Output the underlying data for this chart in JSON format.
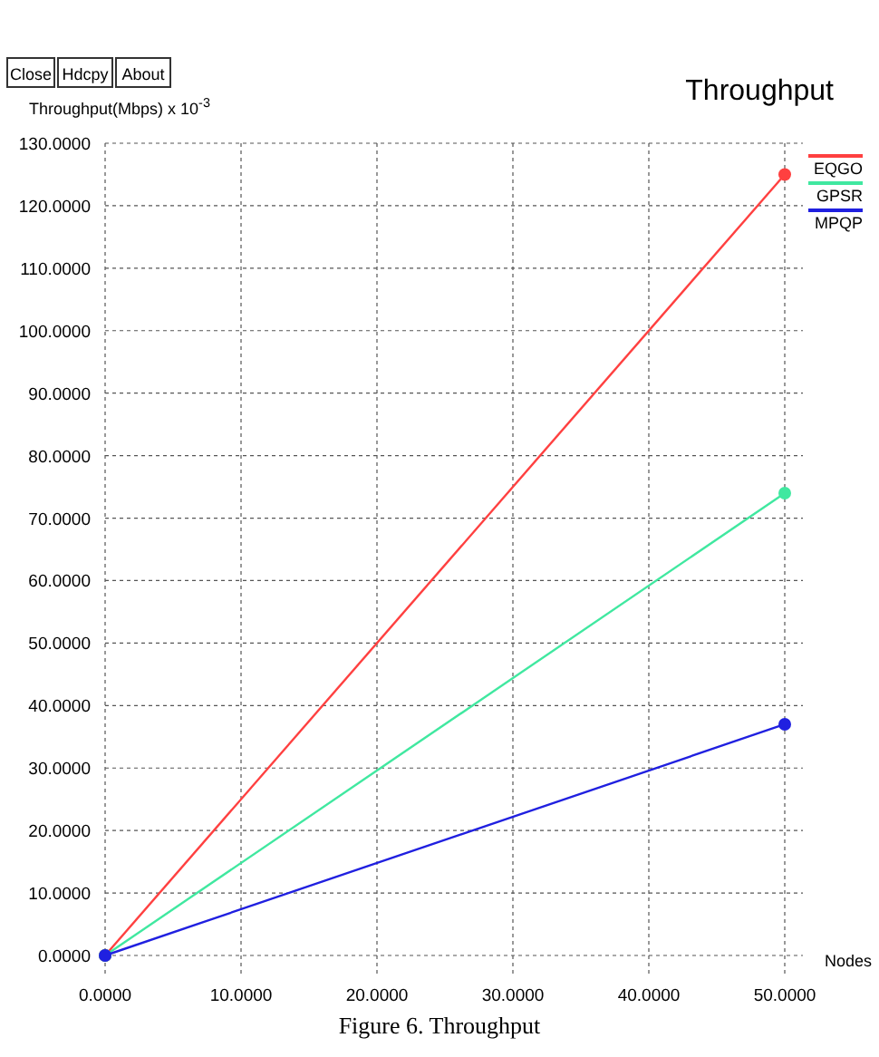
{
  "chart_data": {
    "type": "line",
    "title": "Throughput",
    "xlabel": "Nodes",
    "ylabel": "Throughput(Mbps) x 10$^{-3}$",
    "annotations": [
      "Close",
      "Hdcpy",
      "About",
      "Figure 6. Throughput"
    ],
    "x": [
      0,
      50
    ],
    "series": [
      {
        "name": "EQGO",
        "color": "#ff4040",
        "values": [
          0,
          125
        ]
      },
      {
        "name": "GPSR",
        "color": "#40e8a0",
        "values": [
          0,
          74
        ]
      },
      {
        "name": "MPQP",
        "color": "#2020e0",
        "values": [
          0,
          37
        ]
      }
    ],
    "xlim": [
      0,
      50
    ],
    "ylim": [
      0,
      130
    ],
    "xticks": [
      {
        "value": 0,
        "label": "0.0000"
      },
      {
        "value": 10,
        "label": "10.0000"
      },
      {
        "value": 20,
        "label": "20.0000"
      },
      {
        "value": 30,
        "label": "30.0000"
      },
      {
        "value": 40,
        "label": "40.0000"
      },
      {
        "value": 50,
        "label": "50.0000"
      }
    ],
    "yticks": [
      {
        "value": 0,
        "label": "0.0000"
      },
      {
        "value": 10,
        "label": "10.0000"
      },
      {
        "value": 20,
        "label": "20.0000"
      },
      {
        "value": 30,
        "label": "30.0000"
      },
      {
        "value": 40,
        "label": "40.0000"
      },
      {
        "value": 50,
        "label": "50.0000"
      },
      {
        "value": 60,
        "label": "60.0000"
      },
      {
        "value": 70,
        "label": "70.0000"
      },
      {
        "value": 80,
        "label": "80.0000"
      },
      {
        "value": 90,
        "label": "90.0000"
      },
      {
        "value": 100,
        "label": "100.0000"
      },
      {
        "value": 110,
        "label": "110.0000"
      },
      {
        "value": 120,
        "label": "120.0000"
      },
      {
        "value": 130,
        "label": "130.0000"
      }
    ],
    "grid": true,
    "legend": "top right",
    "marker": "circle",
    "line_style": "solid"
  }
}
